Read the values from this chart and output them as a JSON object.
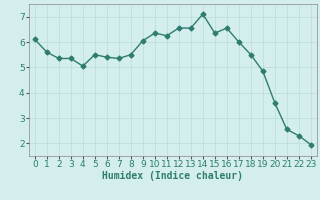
{
  "x": [
    0,
    1,
    2,
    3,
    4,
    5,
    6,
    7,
    8,
    9,
    10,
    11,
    12,
    13,
    14,
    15,
    16,
    17,
    18,
    19,
    20,
    21,
    22,
    23
  ],
  "y": [
    6.1,
    5.6,
    5.35,
    5.35,
    5.05,
    5.5,
    5.4,
    5.35,
    5.5,
    6.05,
    6.35,
    6.25,
    6.55,
    6.55,
    7.1,
    6.35,
    6.55,
    6.0,
    5.5,
    4.85,
    3.6,
    2.55,
    2.3,
    1.95
  ],
  "line_color": "#2e7d6e",
  "marker": "D",
  "marker_size": 2.5,
  "bg_color": "#d4eeee",
  "grid_color": "#c0dede",
  "xlabel": "Humidex (Indice chaleur)",
  "ylim": [
    1.5,
    7.5
  ],
  "xlim": [
    -0.5,
    23.5
  ],
  "yticks": [
    2,
    3,
    4,
    5,
    6,
    7
  ],
  "xticks": [
    0,
    1,
    2,
    3,
    4,
    5,
    6,
    7,
    8,
    9,
    10,
    11,
    12,
    13,
    14,
    15,
    16,
    17,
    18,
    19,
    20,
    21,
    22,
    23
  ],
  "axis_fontsize": 7,
  "tick_fontsize": 6.5
}
